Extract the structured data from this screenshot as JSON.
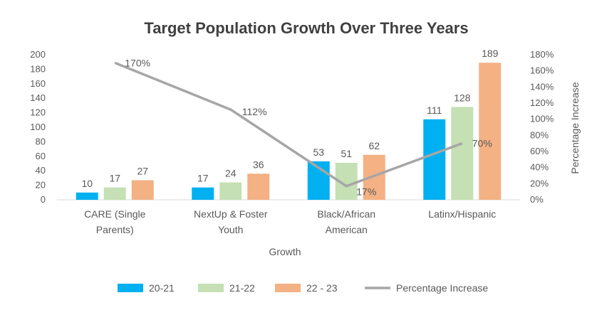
{
  "chart_data": {
    "type": "bar",
    "title": "Target Population Growth Over Three Years",
    "xlabel": "Growth",
    "ylabel": "",
    "y2label": "Percentage Increase",
    "categories": [
      [
        "CARE (Single",
        "Parents)"
      ],
      [
        "NextUp & Foster",
        "Youth"
      ],
      [
        "Black/African",
        "American"
      ],
      [
        "Latinx/Hispanic"
      ]
    ],
    "series": [
      {
        "name": "20-21",
        "kind": "bar",
        "color": "#00B0F0",
        "values": [
          10,
          17,
          53,
          111
        ]
      },
      {
        "name": "21-22",
        "kind": "bar",
        "color": "#C5E0B4",
        "values": [
          17,
          24,
          51,
          128
        ]
      },
      {
        "name": "22 - 23",
        "kind": "bar",
        "color": "#F4B183",
        "values": [
          27,
          36,
          62,
          189
        ]
      },
      {
        "name": "Percentage Increase",
        "kind": "line",
        "axis": "secondary",
        "color": "#A6A6A6",
        "values": [
          170,
          112,
          17,
          70
        ],
        "labels": [
          "170%",
          "112%",
          "17%",
          "70%"
        ]
      }
    ],
    "ylim": [
      0,
      200
    ],
    "yticks": [
      "0",
      "20",
      "40",
      "60",
      "80",
      "100",
      "120",
      "140",
      "160",
      "180",
      "200"
    ],
    "y2lim": [
      0,
      180
    ],
    "y2ticks": [
      "0%",
      "20%",
      "40%",
      "60%",
      "80%",
      "100%",
      "120%",
      "140%",
      "160%",
      "180%"
    ],
    "grid": false,
    "legend_position": "bottom"
  }
}
